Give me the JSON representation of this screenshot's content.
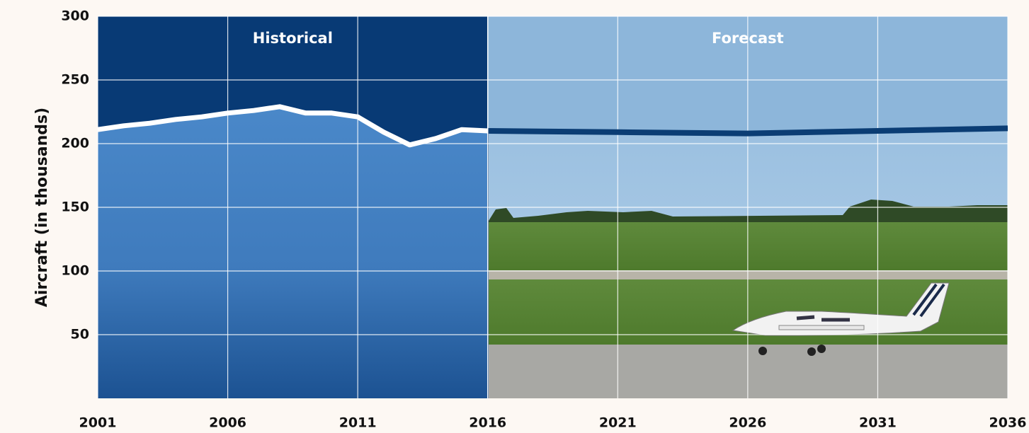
{
  "chart_data": {
    "type": "area-line",
    "y_label": "Aircraft (in thousands)",
    "series": [
      {
        "name": "Historical",
        "color": "#ffffff",
        "x": [
          2001,
          2002,
          2003,
          2004,
          2005,
          2006,
          2007,
          2008,
          2009,
          2010,
          2011,
          2012,
          2013,
          2014,
          2015,
          2016
        ],
        "values": [
          211,
          214,
          216,
          219,
          221,
          224,
          226,
          229,
          224,
          224,
          221,
          209,
          199,
          204,
          211,
          210
        ]
      },
      {
        "name": "Forecast",
        "color": "#0b3d74",
        "x": [
          2016,
          2021,
          2026,
          2031,
          2036
        ],
        "values": [
          210,
          209,
          208,
          210,
          212
        ]
      }
    ],
    "xlim": [
      2001,
      2036
    ],
    "xticks": [
      2001,
      2006,
      2011,
      2016,
      2021,
      2026,
      2031,
      2036
    ],
    "ylim": [
      0,
      300
    ],
    "yticks": [
      50,
      100,
      150,
      200,
      250,
      300
    ],
    "grid": true
  }
}
